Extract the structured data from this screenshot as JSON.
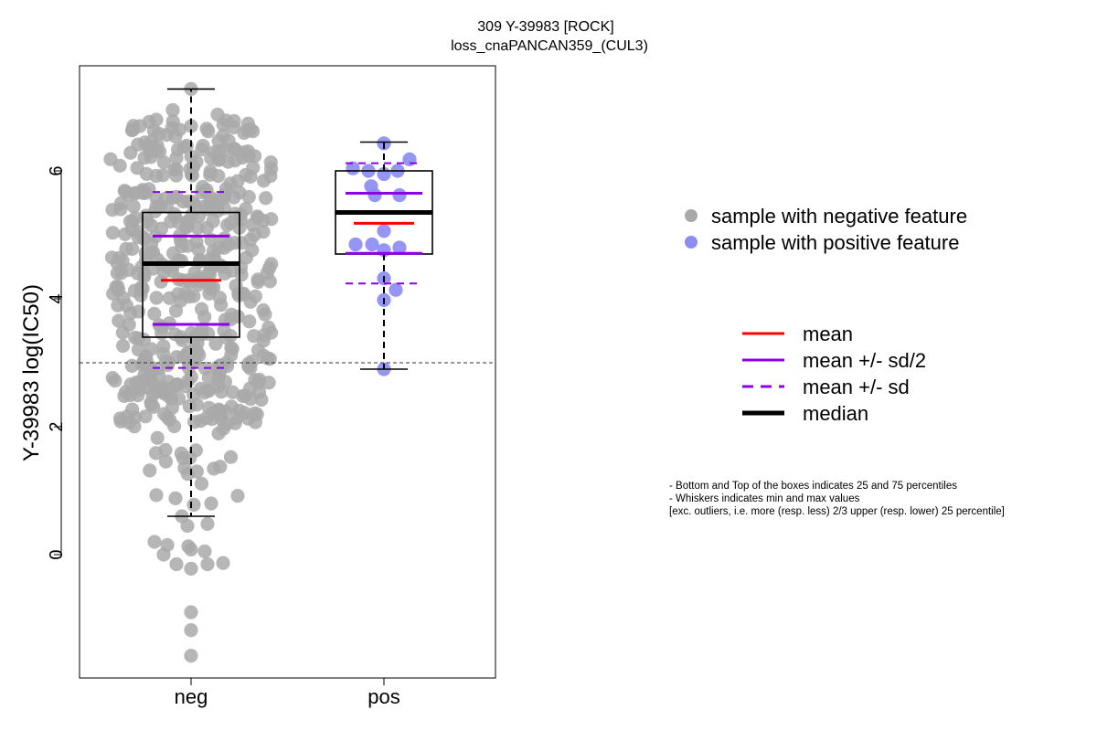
{
  "chart_data": {
    "type": "box-beeswarm",
    "title": "309 Y-39983 [ROCK]",
    "subtitle": "loss_cnaPANCAN359_(CUL3)",
    "ylabel": "Y-39983 log(IC50)",
    "xlabel": "",
    "categories": [
      "neg",
      "pos"
    ],
    "ylim": [
      -1.9,
      7.7
    ],
    "yticks": [
      0,
      2,
      4,
      6
    ],
    "threshold_line": 3.0,
    "grid": false,
    "groups": [
      {
        "name": "neg",
        "color": "#a9a9a9",
        "min": 0.6,
        "q1": 3.4,
        "median": 4.55,
        "q3": 5.35,
        "max": 7.28,
        "mean": 4.29,
        "mean_minus_half_sd": 3.6,
        "mean_plus_half_sd": 4.98,
        "mean_minus_sd": 2.92,
        "mean_plus_sd": 5.67,
        "low_points": [
          0.93,
          0.88,
          0.78,
          0.8,
          0.92,
          0.45,
          0.48,
          0.6,
          0.2,
          0.15,
          0.13,
          0.08,
          0.0,
          0.05,
          -0.15,
          -0.22,
          -0.15,
          -0.13,
          -0.9,
          -1.18,
          -1.58
        ]
      },
      {
        "name": "pos",
        "color": "#8c8cf2",
        "min": 2.9,
        "q1": 4.7,
        "median": 5.35,
        "q3": 6.0,
        "max": 6.45,
        "mean": 5.18,
        "mean_minus_half_sd": 4.71,
        "mean_plus_half_sd": 5.65,
        "mean_minus_sd": 4.24,
        "mean_plus_sd": 6.12,
        "points": [
          6.43,
          6.18,
          6.04,
          6.0,
          6.0,
          5.95,
          5.76,
          5.62,
          5.62,
          5.06,
          4.85,
          4.85,
          4.8,
          4.76,
          4.32,
          4.14,
          3.98,
          2.9
        ]
      }
    ],
    "legend_points": [
      {
        "label": "sample with negative feature",
        "color": "#a9a9a9"
      },
      {
        "label": "sample with positive feature",
        "color": "#8c8cf2"
      }
    ],
    "legend_lines": [
      {
        "label": "mean",
        "color": "#ff0000",
        "style": "solid"
      },
      {
        "label": "mean +/- sd/2",
        "color": "#8b00e8",
        "style": "solid"
      },
      {
        "label": "mean +/- sd",
        "color": "#8b00e8",
        "style": "dashed"
      },
      {
        "label": "median",
        "color": "#000000",
        "style": "solid-thick"
      }
    ],
    "notes": [
      "- Bottom and Top of the boxes indicates 25 and 75 percentiles",
      "- Whiskers indicates min and max values",
      "[exc. outliers, i.e. more (resp. less) 2/3 upper (resp. lower) 25 percentile]"
    ]
  }
}
